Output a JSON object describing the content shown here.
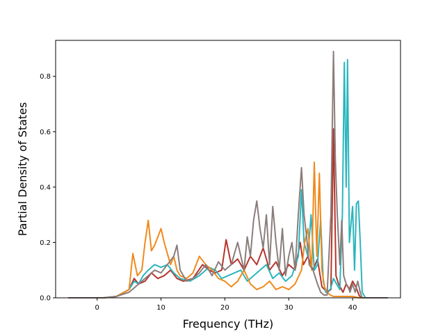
{
  "chart_data": {
    "type": "line",
    "title": "",
    "xlabel": "Frequency (THz)",
    "ylabel": "Partial Density of States",
    "xlim": [
      -6.5,
      47.5
    ],
    "ylim": [
      0,
      0.93
    ],
    "xticks": [
      0,
      10,
      20,
      30,
      40
    ],
    "yticks": [
      0.0,
      0.2,
      0.4,
      0.6,
      0.8
    ],
    "xtick_labels": [
      "0",
      "10",
      "20",
      "30",
      "40"
    ],
    "ytick_labels": [
      "0.0",
      "0.2",
      "0.4",
      "0.6",
      "0.8"
    ],
    "grid": false,
    "legend": "none",
    "series": [
      {
        "color": "#b5342a",
        "x": [
          -4.5,
          1,
          3,
          5,
          5.8,
          6.5,
          7.5,
          8.5,
          9.5,
          10.5,
          11.5,
          12.5,
          13.5,
          15,
          16.5,
          17.5,
          18.5,
          19.5,
          20.2,
          21,
          22,
          23,
          24,
          25,
          26,
          27,
          28,
          29,
          30,
          31,
          31.8,
          32.3,
          33,
          33.8,
          34.5,
          35.2,
          36,
          36.6,
          37,
          37.4,
          37.8,
          38.5,
          39,
          39.5,
          40,
          40.5,
          41,
          41.3,
          42,
          45.5
        ],
        "y": [
          0,
          0,
          0.005,
          0.03,
          0.07,
          0.05,
          0.06,
          0.09,
          0.07,
          0.08,
          0.1,
          0.07,
          0.06,
          0.07,
          0.12,
          0.1,
          0.09,
          0.1,
          0.21,
          0.12,
          0.14,
          0.1,
          0.15,
          0.12,
          0.18,
          0.1,
          0.13,
          0.08,
          0.12,
          0.1,
          0.2,
          0.12,
          0.15,
          0.1,
          0.14,
          0.04,
          0.02,
          0.03,
          0.61,
          0.08,
          0.05,
          0.02,
          0.05,
          0.03,
          0.06,
          0.04,
          0.01,
          0,
          0,
          0
        ]
      },
      {
        "color": "#2bb5bd",
        "x": [
          -4.5,
          1,
          3,
          5,
          5.8,
          6.5,
          7.2,
          8,
          9,
          10,
          11,
          12,
          13,
          14.5,
          16,
          17.5,
          18.5,
          19.5,
          20.5,
          21.5,
          22.5,
          23.5,
          24.5,
          25.5,
          26.5,
          27.5,
          28.5,
          29.5,
          30.5,
          31.5,
          32,
          32.4,
          33,
          33.5,
          34,
          34.5,
          35,
          35.4,
          35.8,
          36.5,
          37,
          37.5,
          38,
          38.4,
          38.7,
          39,
          39.2,
          39.5,
          40,
          40.3,
          40.6,
          40.9,
          41.2,
          41.5,
          42,
          45.5
        ],
        "y": [
          0,
          0,
          0.005,
          0.03,
          0.06,
          0.05,
          0.08,
          0.1,
          0.12,
          0.11,
          0.12,
          0.09,
          0.07,
          0.06,
          0.08,
          0.11,
          0.1,
          0.07,
          0.08,
          0.09,
          0.1,
          0.06,
          0.08,
          0.1,
          0.12,
          0.07,
          0.09,
          0.06,
          0.08,
          0.15,
          0.39,
          0.2,
          0.15,
          0.3,
          0.1,
          0.12,
          0.28,
          0.06,
          0.02,
          0.03,
          0.07,
          0.05,
          0.03,
          0.3,
          0.85,
          0.4,
          0.86,
          0.2,
          0.33,
          0.1,
          0.34,
          0.35,
          0.2,
          0.02,
          0,
          0
        ]
      },
      {
        "color": "#f08a1c",
        "x": [
          -4.5,
          1,
          3,
          5,
          5.6,
          6.3,
          7,
          7.5,
          8,
          8.5,
          9,
          9.5,
          10,
          10.5,
          11,
          11.5,
          12,
          12.5,
          13,
          14,
          15,
          16,
          17,
          18,
          19,
          20,
          21,
          22,
          23,
          24,
          25,
          26,
          27,
          28,
          29,
          30,
          31,
          32,
          32.5,
          33,
          33.6,
          34,
          34.4,
          34.8,
          35.2,
          35.6,
          36,
          36.5,
          37,
          38,
          39,
          40,
          41,
          42,
          45.5
        ],
        "y": [
          0,
          0,
          0.005,
          0.03,
          0.16,
          0.08,
          0.1,
          0.2,
          0.28,
          0.17,
          0.19,
          0.22,
          0.25,
          0.2,
          0.16,
          0.12,
          0.15,
          0.1,
          0.08,
          0.07,
          0.09,
          0.15,
          0.12,
          0.1,
          0.07,
          0.06,
          0.04,
          0.06,
          0.1,
          0.05,
          0.03,
          0.04,
          0.06,
          0.03,
          0.04,
          0.03,
          0.05,
          0.1,
          0.2,
          0.25,
          0.1,
          0.49,
          0.15,
          0.45,
          0.1,
          0.04,
          0.02,
          0.01,
          0.005,
          0.005,
          0.005,
          0.005,
          0,
          0,
          0
        ]
      },
      {
        "color": "#8a7d7b",
        "x": [
          -4.5,
          1,
          3,
          5,
          6,
          7,
          8,
          9,
          10,
          11,
          12,
          12.5,
          13,
          14,
          15,
          16,
          17,
          18,
          19,
          20,
          21,
          22,
          23,
          23.5,
          24,
          24.5,
          25,
          25.5,
          26,
          26.5,
          27,
          27.5,
          28,
          28.5,
          29,
          29.5,
          30,
          30.5,
          31,
          31.5,
          32,
          32.4,
          32.8,
          33.2,
          33.8,
          34.5,
          35,
          35.5,
          36,
          36.6,
          37,
          37.3,
          37.6,
          38,
          38.3,
          38.6,
          39,
          39.3,
          39.6,
          40,
          40.4,
          40.8,
          41.2,
          41.5,
          42,
          45.5
        ],
        "y": [
          0,
          0,
          0.005,
          0.02,
          0.04,
          0.06,
          0.08,
          0.1,
          0.09,
          0.12,
          0.15,
          0.19,
          0.1,
          0.06,
          0.07,
          0.09,
          0.12,
          0.08,
          0.13,
          0.1,
          0.12,
          0.2,
          0.1,
          0.22,
          0.15,
          0.28,
          0.35,
          0.25,
          0.18,
          0.3,
          0.12,
          0.33,
          0.2,
          0.1,
          0.25,
          0.08,
          0.15,
          0.2,
          0.1,
          0.3,
          0.47,
          0.3,
          0.22,
          0.12,
          0.1,
          0.05,
          0.02,
          0.01,
          0.01,
          0.3,
          0.89,
          0.5,
          0.3,
          0.12,
          0.28,
          0.08,
          0.05,
          0.04,
          0.02,
          0.05,
          0.02,
          0.06,
          0.02,
          0,
          0,
          0
        ]
      }
    ]
  }
}
